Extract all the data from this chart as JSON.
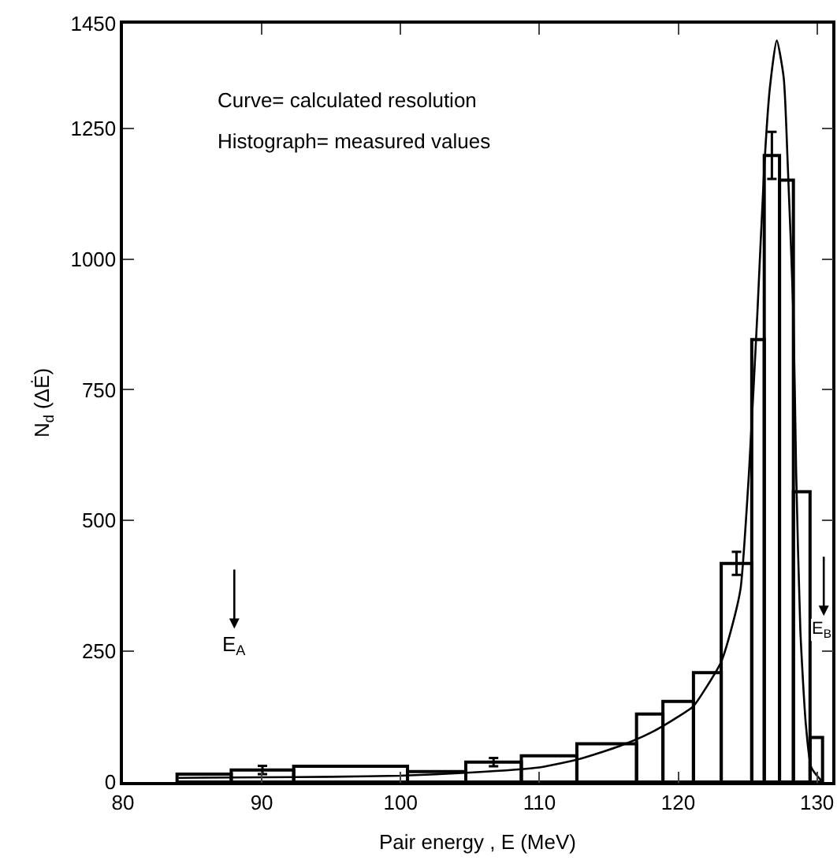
{
  "chart_data": {
    "type": "histogram",
    "xlabel": "Pair energy , E (MeV)",
    "ylabel": "N$_{d}$ (ΔĖ)",
    "xlim": [
      80,
      131.1
    ],
    "ylim": [
      0,
      1450
    ],
    "xticks": [
      80,
      90,
      100,
      110,
      120,
      130
    ],
    "yticks": [
      0,
      250,
      500,
      750,
      1000,
      1250,
      1450
    ],
    "grid": false,
    "annotations": [
      "Curve= calculated resolution",
      "Histograph= measured values",
      "E$_{A}$",
      "E$_{B}$"
    ],
    "series": [
      {
        "color": "#000000",
        "bins": [
          83.9,
          87.8,
          92.3,
          100.5,
          104.7,
          108.7,
          112.7,
          117,
          118.9,
          121.1,
          123.1,
          125.3,
          126.2,
          127.3,
          128.3,
          129.5,
          130.4
        ],
        "values": [
          15,
          23,
          30,
          20,
          38,
          50,
          73,
          130,
          154,
          209,
          418,
          846,
          1198,
          1151,
          555,
          85
        ],
        "errors": [
          null,
          8,
          null,
          null,
          8,
          null,
          null,
          null,
          null,
          null,
          22,
          null,
          45,
          null,
          null,
          null
        ]
      },
      {
        "type": "line",
        "color": "#000000",
        "x": [
          84,
          90,
          95,
          100,
          105,
          110,
          113,
          115.8,
          118,
          120,
          121.1,
          122,
          123.1,
          124,
          124.5,
          125.1,
          125.7,
          126.2,
          126.6,
          127.1,
          127.6,
          127.9,
          128.3,
          128.5,
          128.8,
          129.2,
          129.6,
          130.4
        ],
        "values": [
          8,
          9,
          10,
          12,
          18,
          28,
          45,
          69,
          94,
          125,
          145,
          180,
          230,
          310,
          371,
          592,
          894,
          1175,
          1326,
          1418,
          1347,
          1175,
          894,
          592,
          290,
          109,
          27,
          0
        ]
      }
    ]
  }
}
